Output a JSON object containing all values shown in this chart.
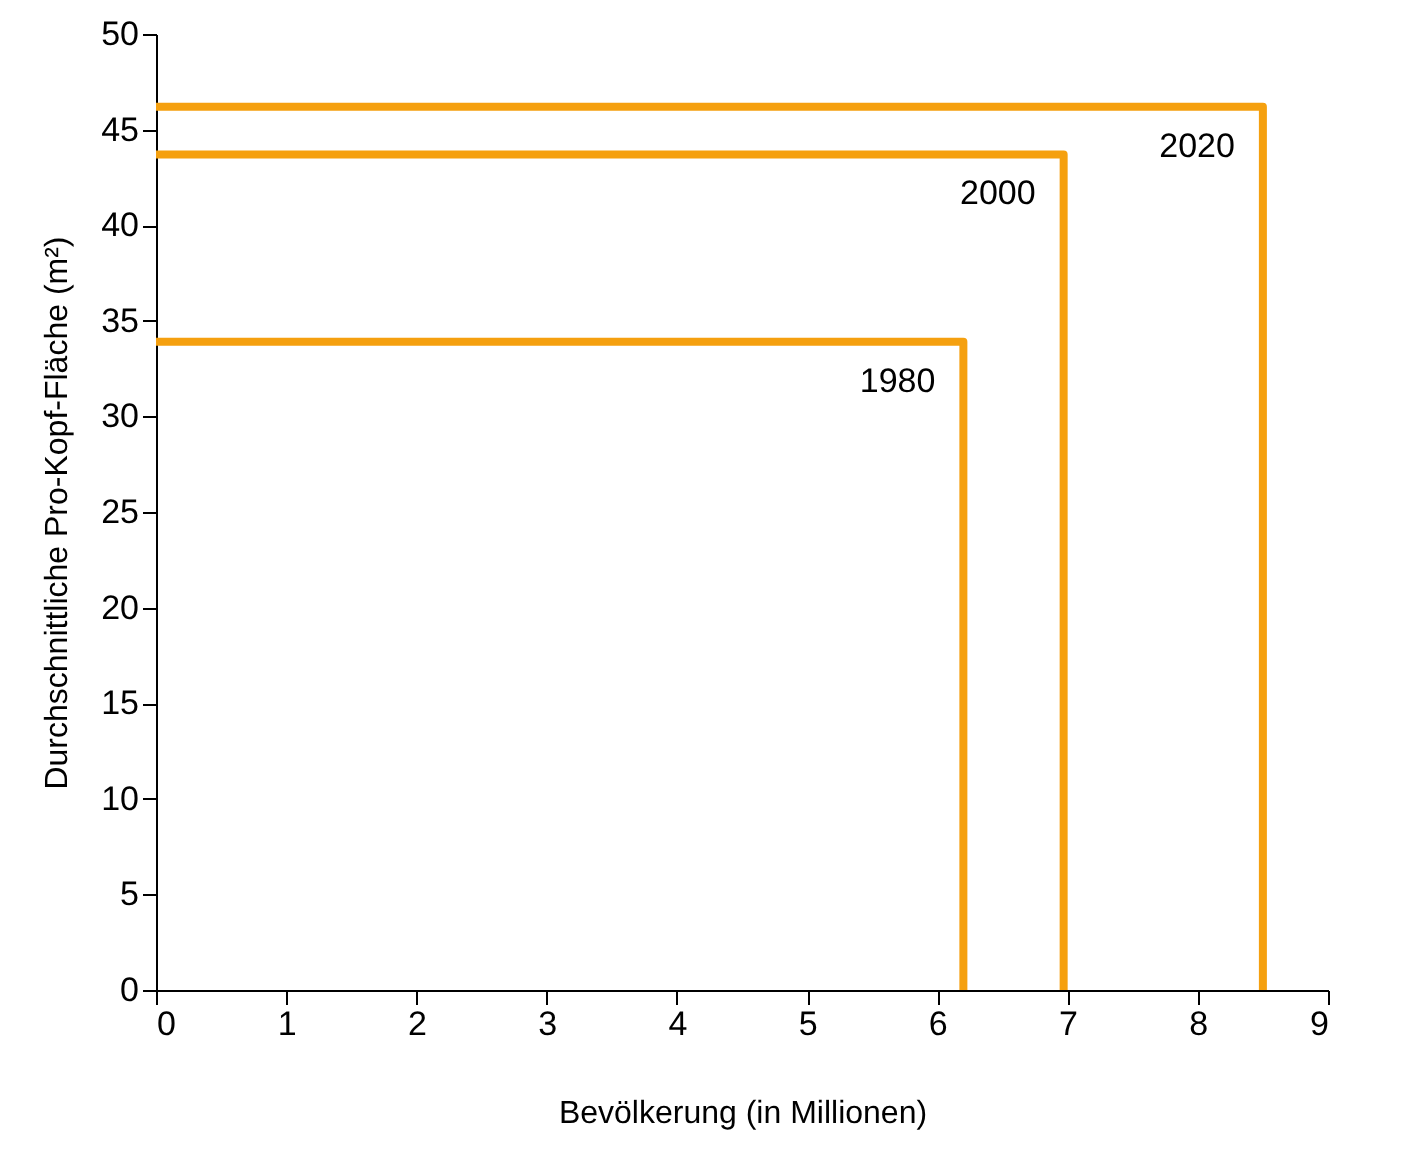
{
  "chart_data": {
    "type": "line",
    "xlabel": "Bevölkerung (in Millionen)",
    "ylabel": "Durchschnittliche Pro-Kopf-Fläche (m²)",
    "xlim": [
      0,
      9
    ],
    "xticks": [
      0,
      1,
      2,
      3,
      4,
      5,
      6,
      7,
      8,
      9
    ],
    "ylim": [
      0,
      50
    ],
    "yticks": [
      0,
      5,
      10,
      15,
      20,
      25,
      30,
      35,
      40,
      45,
      50
    ],
    "grid": false,
    "marker": "none",
    "line_style": "solid",
    "series": [
      {
        "name": "1980",
        "color": "#f5a00f",
        "x": [
          0,
          6.2,
          6.2
        ],
        "values": [
          33.9,
          33.9,
          0
        ]
      },
      {
        "name": "2000",
        "color": "#f5a00f",
        "x": [
          0,
          6.97,
          6.97
        ],
        "values": [
          43.7,
          43.7,
          0
        ]
      },
      {
        "name": "2020",
        "color": "#f5a00f",
        "x": [
          0,
          8.5,
          8.5
        ],
        "values": [
          46.2,
          46.2,
          0
        ]
      }
    ]
  }
}
